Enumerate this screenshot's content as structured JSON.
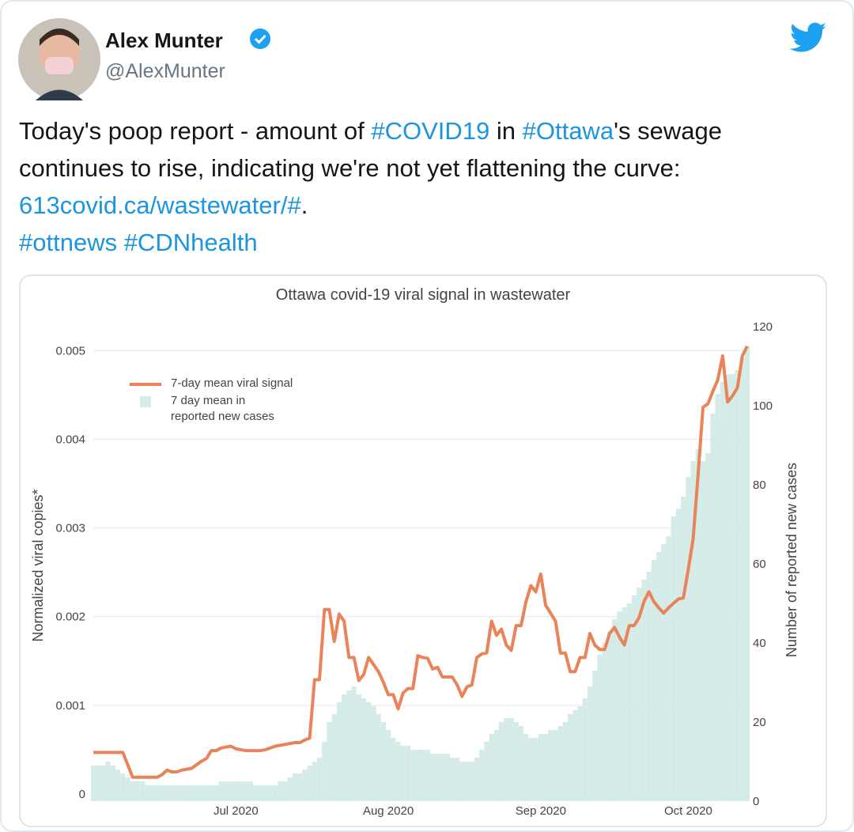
{
  "tweet": {
    "name": "Alex Munter",
    "handle": "@AlexMunter",
    "text": [
      {
        "text": "Today's poop report - amount of ",
        "link": false
      },
      {
        "text": "#COVID19",
        "link": true
      },
      {
        "text": " in ",
        "link": false
      },
      {
        "text": "#Ottawa",
        "link": true
      },
      {
        "text": "'s sewage continues to rise, indicating we're not yet flattening the curve: ",
        "link": false
      },
      {
        "text": "613covid.ca/wastewater/#",
        "link": true
      },
      {
        "text": ".\n",
        "link": false
      },
      {
        "text": "#ottnews #CDNhealth",
        "link": true
      }
    ]
  },
  "chart_data": {
    "type": "combo",
    "title": "Ottawa covid-19 viral signal in wastewater",
    "ylabel": "Normalized viral copies*",
    "y2label": "Number of reported new cases",
    "categories": [
      null,
      null,
      null,
      null,
      null,
      null,
      null,
      null,
      null,
      null,
      null,
      null,
      null,
      null,
      null,
      null,
      null,
      null,
      null,
      null,
      null,
      null,
      null,
      null,
      null,
      null,
      null,
      null,
      null,
      "Jul 2020",
      null,
      null,
      null,
      null,
      null,
      null,
      null,
      null,
      null,
      null,
      null,
      null,
      null,
      null,
      null,
      null,
      null,
      null,
      null,
      null,
      null,
      null,
      null,
      null,
      null,
      null,
      null,
      null,
      null,
      null,
      "Aug 2020",
      null,
      null,
      null,
      null,
      null,
      null,
      null,
      null,
      null,
      null,
      null,
      null,
      null,
      null,
      null,
      null,
      null,
      null,
      null,
      null,
      null,
      null,
      null,
      null,
      null,
      null,
      null,
      null,
      null,
      null,
      "Sep 2020",
      null,
      null,
      null,
      null,
      null,
      null,
      null,
      null,
      null,
      null,
      null,
      null,
      null,
      null,
      null,
      null,
      null,
      null,
      null,
      null,
      null,
      null,
      null,
      null,
      null,
      null,
      null,
      null,
      null,
      "Oct 2020",
      null,
      null,
      null,
      null,
      null,
      null,
      null,
      null,
      null,
      null,
      null,
      null
    ],
    "series": [
      {
        "name": "7-day mean viral signal",
        "type": "line",
        "color": "#e8835a",
        "values": [
          0.00047,
          0.00047,
          0.00047,
          0.00047,
          0.00047,
          0.00047,
          0.00047,
          0.00033,
          0.00019,
          0.00019,
          0.00019,
          0.00019,
          0.00019,
          0.00019,
          0.00022,
          0.00027,
          0.00025,
          0.00025,
          0.00027,
          0.00028,
          0.00029,
          0.00033,
          0.00037,
          0.0004,
          0.00049,
          0.00049,
          0.00052,
          0.00053,
          0.00054,
          0.00051,
          0.0005,
          0.00049,
          0.00049,
          0.00049,
          0.00049,
          0.0005,
          0.00052,
          0.00054,
          0.00055,
          0.00056,
          0.00057,
          0.00058,
          0.00058,
          0.00061,
          0.00063,
          0.00129,
          0.00129,
          0.00208,
          0.00208,
          0.00172,
          0.00203,
          0.00195,
          0.00154,
          0.00154,
          0.00128,
          0.00135,
          0.00154,
          0.00146,
          0.00138,
          0.00126,
          0.00112,
          0.00112,
          0.00096,
          0.00114,
          0.00119,
          0.00119,
          0.00156,
          0.00154,
          0.00153,
          0.00141,
          0.00143,
          0.00132,
          0.00132,
          0.00132,
          0.00123,
          0.0011,
          0.00121,
          0.00123,
          0.00154,
          0.00158,
          0.00159,
          0.00195,
          0.00179,
          0.00186,
          0.00168,
          0.00162,
          0.0019,
          0.0019,
          0.00217,
          0.00235,
          0.00228,
          0.00248,
          0.00213,
          0.00204,
          0.00195,
          0.00159,
          0.00159,
          0.00138,
          0.00138,
          0.00154,
          0.00154,
          0.00181,
          0.00168,
          0.00163,
          0.00163,
          0.00181,
          0.00188,
          0.00177,
          0.00168,
          0.0019,
          0.0019,
          0.00199,
          0.00217,
          0.00228,
          0.00217,
          0.0021,
          0.00204,
          0.0021,
          0.00215,
          0.0022,
          0.00221,
          0.00253,
          0.00288,
          0.0036,
          0.00436,
          0.0044,
          0.00454,
          0.00467,
          0.00494,
          0.00442,
          0.00449,
          0.00458,
          0.00494,
          0.00505
        ]
      },
      {
        "name": "7 day mean in reported new cases",
        "type": "bar",
        "axis": "y2",
        "color": "#d5ebe8",
        "values": [
          9,
          9,
          9,
          10,
          9,
          8,
          7,
          6,
          5,
          5,
          5,
          4,
          4,
          4,
          4,
          4,
          4,
          4,
          4,
          4,
          4,
          4,
          4,
          4,
          4,
          4,
          5,
          5,
          5,
          5,
          5,
          5,
          5,
          4,
          4,
          4,
          4,
          4,
          5,
          5,
          6,
          7,
          7,
          8,
          9,
          10,
          11,
          15,
          20,
          22,
          25,
          27,
          28,
          29,
          27,
          26,
          25,
          24,
          22,
          20,
          18,
          16,
          15,
          14,
          14,
          13,
          13,
          13,
          13,
          12,
          12,
          12,
          12,
          11,
          11,
          10,
          10,
          10,
          11,
          13,
          15,
          17,
          18,
          20,
          21,
          21,
          20,
          19,
          17,
          16,
          16,
          17,
          17,
          18,
          18,
          19,
          20,
          22,
          23,
          24,
          26,
          29,
          33,
          37,
          40,
          43,
          46,
          48,
          49,
          50,
          52,
          54,
          56,
          58,
          61,
          63,
          65,
          67,
          72,
          74,
          77,
          82,
          86,
          89,
          86,
          88,
          98,
          103,
          106,
          108,
          108,
          109,
          112,
          115
        ]
      }
    ],
    "ylim": [
      -8e-05,
      0.00527
    ],
    "yticks": [
      0,
      0.001,
      0.002,
      0.003,
      0.004,
      0.005
    ],
    "y2lim": [
      0,
      120
    ],
    "y2ticks": [
      0,
      20,
      40,
      60,
      80,
      100,
      120
    ],
    "grid": true,
    "legend": "top-left"
  }
}
